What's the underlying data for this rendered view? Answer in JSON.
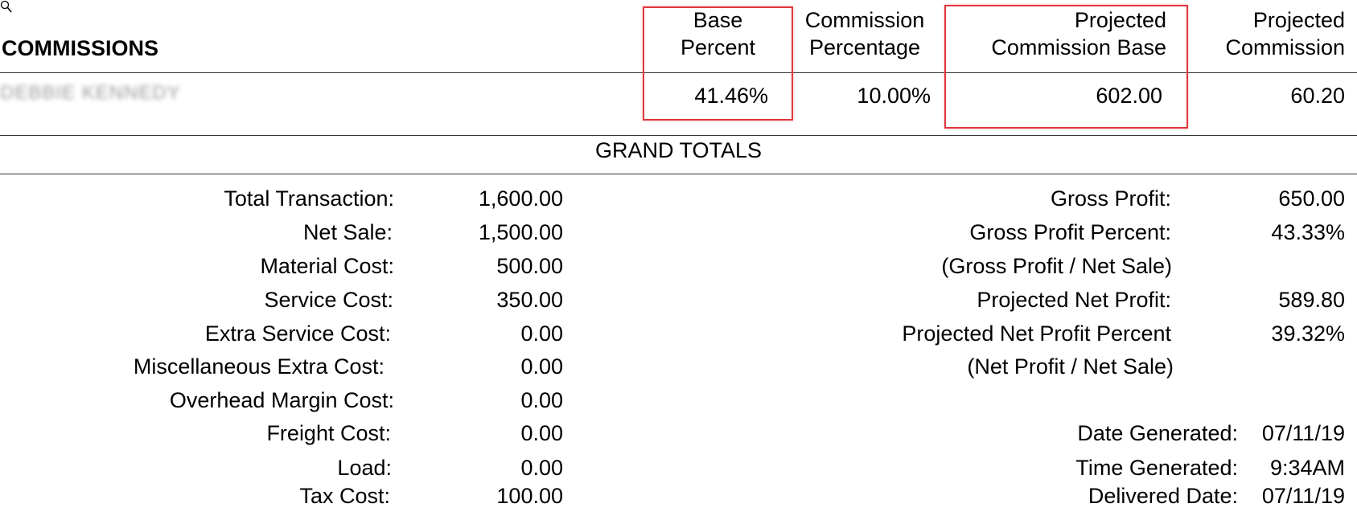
{
  "report": {
    "section_title": "COMMISSIONS",
    "columns": [
      {
        "line1": "Base",
        "line2": "Percent"
      },
      {
        "line1": "Commission",
        "line2": "Percentage"
      },
      {
        "line1": "Projected",
        "line2": "Commission Base"
      },
      {
        "line1": "Projected",
        "line2": "Commission"
      }
    ],
    "row": {
      "name": "DEBBIE KENNEDY",
      "base_percent": "41.46%",
      "commission_percentage": "10.00%",
      "projected_commission_base": "602.00",
      "projected_commission": "60.20"
    },
    "highlight_color": "#e0383f"
  },
  "grand_totals": {
    "title": "GRAND TOTALS",
    "left": [
      {
        "label": "Total Transaction:",
        "value": "1,600.00"
      },
      {
        "label": "Net Sale:",
        "value": "1,500.00"
      },
      {
        "label": "Material Cost:",
        "value": "500.00"
      },
      {
        "label": "Service Cost:",
        "value": "350.00"
      },
      {
        "label": "Extra Service Cost:",
        "value": "0.00"
      },
      {
        "label": "Miscellaneous Extra Cost:",
        "value": "0.00"
      },
      {
        "label": "Overhead Margin Cost:",
        "value": "0.00"
      },
      {
        "label": "Freight Cost:",
        "value": "0.00"
      },
      {
        "label": "Load:",
        "value": "0.00"
      },
      {
        "label": "Tax Cost:",
        "value": "100.00"
      }
    ],
    "right": [
      {
        "label": "Gross Profit:",
        "value": "650.00"
      },
      {
        "label": "Gross Profit Percent:",
        "value": "43.33%"
      },
      {
        "label": "(Gross Profit / Net Sale)",
        "value": ""
      },
      {
        "label": "Projected Net Profit:",
        "value": "589.80"
      },
      {
        "label": "Projected Net Profit Percent",
        "value": "39.32%"
      },
      {
        "label": "(Net Profit / Net Sale)",
        "value": ""
      }
    ],
    "footer": [
      {
        "label": "Date Generated:",
        "value": "07/11/19"
      },
      {
        "label": "Time Generated:",
        "value": "9:34AM"
      },
      {
        "label": "Delivered Date:",
        "value": "07/11/19"
      }
    ]
  },
  "icons": {
    "cursor": "magnifier-cursor-icon"
  }
}
